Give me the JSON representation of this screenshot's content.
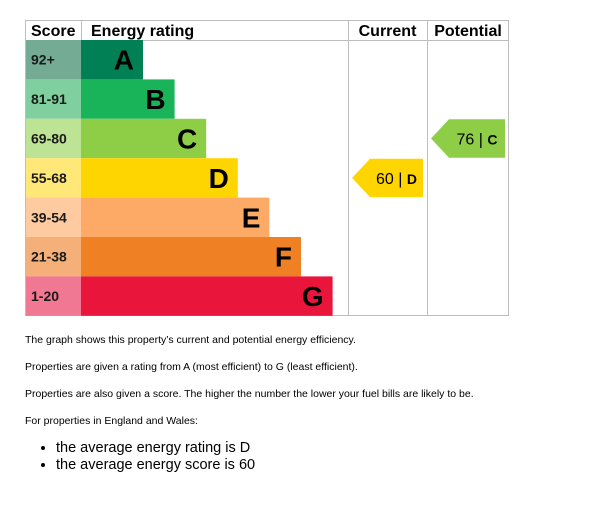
{
  "chart_data": {
    "type": "bar",
    "headers": {
      "score": "Score",
      "rating": "Energy rating",
      "current": "Current",
      "potential": "Potential"
    },
    "bands": [
      {
        "letter": "A",
        "score": "92+",
        "color": "#008054",
        "score_bg": "#74ab95"
      },
      {
        "letter": "B",
        "score": "81-91",
        "color": "#19b459",
        "score_bg": "#7fd09e"
      },
      {
        "letter": "C",
        "score": "69-80",
        "color": "#8dce46",
        "score_bg": "#bde394"
      },
      {
        "letter": "D",
        "score": "55-68",
        "color": "#ffd500",
        "score_bg": "#ffe778"
      },
      {
        "letter": "E",
        "score": "39-54",
        "color": "#fcaa65",
        "score_bg": "#fdcb9f"
      },
      {
        "letter": "F",
        "score": "21-38",
        "color": "#ef8023",
        "score_bg": "#f5b07a"
      },
      {
        "letter": "G",
        "score": "1-20",
        "color": "#e9153b",
        "score_bg": "#f17892"
      }
    ],
    "current": {
      "value": 60,
      "letter": "D",
      "color": "#ffd500"
    },
    "potential": {
      "value": 76,
      "letter": "C",
      "color": "#8dce46"
    }
  },
  "text": {
    "p1": "The graph shows this property’s current and potential energy efficiency.",
    "p2": "Properties are given a rating from A (most efficient) to G (least efficient).",
    "p3": "Properties are also given a score. The higher the number the lower your fuel bills are likely to be.",
    "p4": "For properties in England and Wales:",
    "bullets": [
      "the average energy rating is D",
      "the average energy score is 60"
    ]
  }
}
